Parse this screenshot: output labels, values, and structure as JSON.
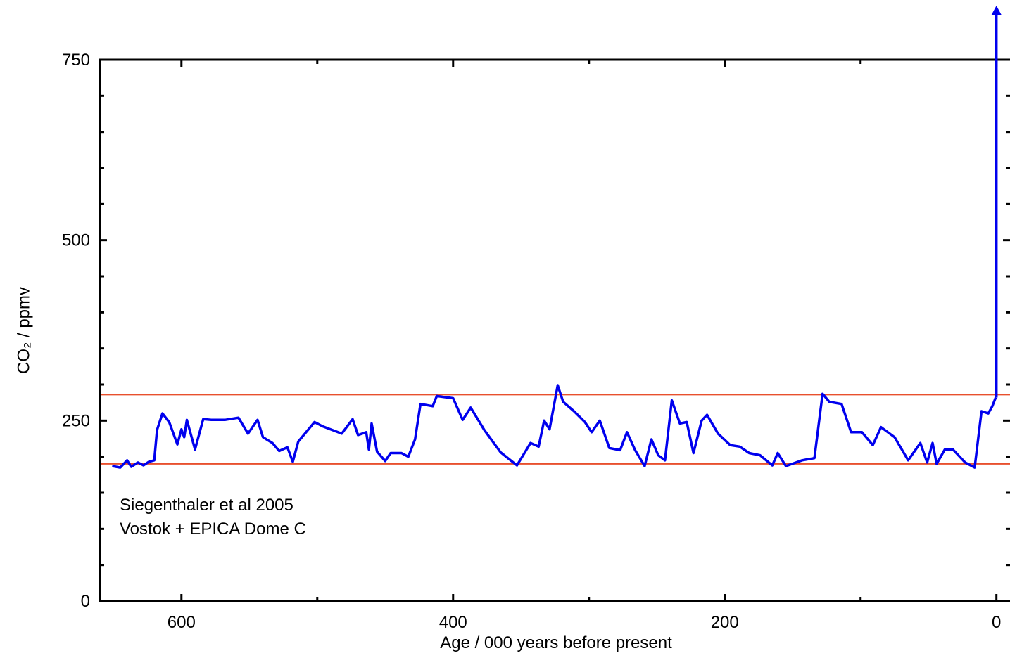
{
  "chart_data": {
    "type": "line",
    "y_label": "CO₂ / ppmv",
    "x_label": "Age / 000 years before present",
    "annotations": [
      "Siegenthaler et al 2005",
      "Vostok + EPICA Dome C"
    ],
    "xlim": [
      660,
      -10
    ],
    "ylim": [
      0,
      750
    ],
    "xticks": [
      600,
      400,
      200,
      0
    ],
    "xminor_ticks": [
      500,
      300,
      100
    ],
    "yticks": [
      0,
      250,
      500,
      750
    ],
    "yminor_ticks": [
      50,
      100,
      150,
      200,
      300,
      350,
      400,
      450,
      550,
      600,
      650,
      700
    ],
    "reference_lines": [
      {
        "value": 286,
        "color": "#e8502e"
      },
      {
        "value": 190,
        "color": "#e8502e"
      }
    ],
    "arrow": {
      "x": 0,
      "y": [
        282,
        825
      ],
      "color": "#0000ee"
    },
    "series": [
      {
        "name": "CO2",
        "color": "#0000ee",
        "x": [
          651,
          645,
          640,
          637,
          632,
          628,
          624,
          620,
          618,
          614,
          609,
          603,
          600,
          598,
          596,
          590,
          584,
          578,
          568,
          558,
          551,
          544,
          540,
          533,
          528,
          522,
          518,
          514,
          502,
          496,
          482,
          474,
          470,
          464,
          462,
          460,
          456,
          450,
          446,
          438,
          433,
          428,
          424,
          415,
          412,
          400,
          393,
          387,
          377,
          365,
          353,
          343,
          337,
          333,
          329,
          323,
          319,
          311,
          303,
          298,
          292,
          285,
          277,
          272,
          266,
          259,
          254,
          249,
          244,
          239,
          233,
          228,
          223,
          217,
          213,
          205,
          196,
          189,
          182,
          174,
          165,
          161,
          155,
          143,
          134,
          128,
          123,
          114,
          107,
          99,
          91,
          85,
          75,
          65,
          56,
          51,
          47,
          44,
          38,
          32,
          23,
          16,
          11,
          6,
          3,
          0.5
        ],
        "values": [
          187,
          185,
          195,
          186,
          192,
          188,
          193,
          195,
          237,
          260,
          248,
          217,
          238,
          227,
          251,
          210,
          252,
          251,
          251,
          254,
          232,
          251,
          227,
          219,
          208,
          213,
          193,
          221,
          248,
          242,
          232,
          252,
          230,
          234,
          210,
          246,
          207,
          194,
          205,
          205,
          200,
          224,
          273,
          270,
          284,
          281,
          251,
          268,
          237,
          206,
          188,
          219,
          214,
          250,
          238,
          299,
          276,
          263,
          248,
          234,
          250,
          212,
          209,
          234,
          209,
          187,
          224,
          202,
          195,
          278,
          246,
          248,
          205,
          250,
          258,
          232,
          216,
          214,
          205,
          202,
          188,
          205,
          187,
          195,
          198,
          287,
          276,
          273,
          234,
          234,
          216,
          241,
          227,
          195,
          219,
          192,
          219,
          190,
          210,
          210,
          192,
          185,
          263,
          260,
          270,
          282
        ]
      }
    ]
  }
}
